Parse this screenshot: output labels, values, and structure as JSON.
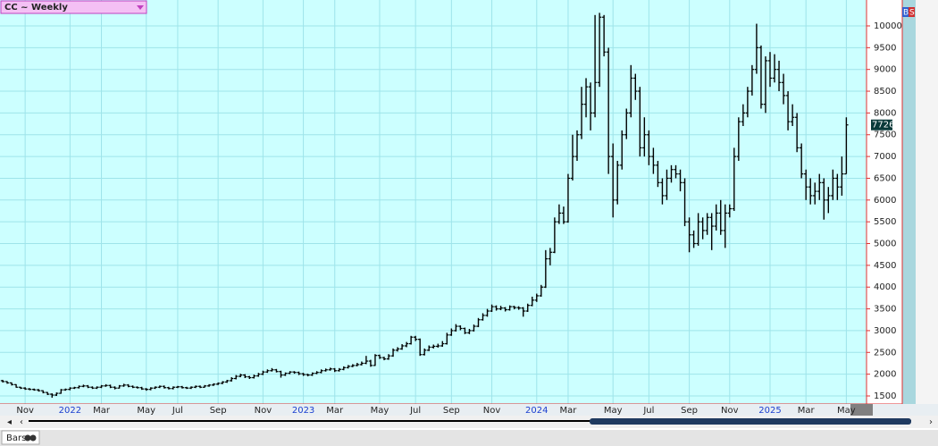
{
  "chart_data": {
    "type": "ohlc",
    "title": "CC ~ Weekly",
    "buttons": [
      "B",
      "S"
    ],
    "tab": "Bars",
    "color": "#000000",
    "background": "#ccffff",
    "grid": true,
    "ylim": [
      1315,
      10595
    ],
    "yticks": [
      1500,
      2000,
      2500,
      3000,
      3500,
      4000,
      4500,
      5000,
      5500,
      6000,
      6500,
      7000,
      7500,
      8000,
      8500,
      9000,
      9500,
      10000
    ],
    "xlim": [
      -0.6,
      192.5
    ],
    "xticks": [
      {
        "value": 5,
        "label": "Nov"
      },
      {
        "value": 15,
        "label": "2022"
      },
      {
        "value": 22,
        "label": "Mar"
      },
      {
        "value": 32,
        "label": "May"
      },
      {
        "value": 39,
        "label": "Jul"
      },
      {
        "value": 48,
        "label": "Sep"
      },
      {
        "value": 58,
        "label": "Nov"
      },
      {
        "value": 67,
        "label": "2023"
      },
      {
        "value": 74,
        "label": "Mar"
      },
      {
        "value": 84,
        "label": "May"
      },
      {
        "value": 92,
        "label": "Jul"
      },
      {
        "value": 100,
        "label": "Sep"
      },
      {
        "value": 109,
        "label": "Nov"
      },
      {
        "value": 119,
        "label": "2024"
      },
      {
        "value": 126,
        "label": "Mar"
      },
      {
        "value": 136,
        "label": "May"
      },
      {
        "value": 144,
        "label": "Jul"
      },
      {
        "value": 153,
        "label": "Sep"
      },
      {
        "value": 162,
        "label": "Nov"
      },
      {
        "value": 171,
        "label": "2025"
      },
      {
        "value": 179,
        "label": "Mar"
      },
      {
        "value": 188,
        "label": "May"
      }
    ],
    "ohlc": [
      [
        1850,
        1870,
        1810,
        1830
      ],
      [
        1830,
        1840,
        1780,
        1800
      ],
      [
        1800,
        1810,
        1740,
        1760
      ],
      [
        1760,
        1770,
        1690,
        1700
      ],
      [
        1700,
        1710,
        1660,
        1680
      ],
      [
        1680,
        1700,
        1640,
        1660
      ],
      [
        1660,
        1680,
        1630,
        1650
      ],
      [
        1650,
        1670,
        1620,
        1640
      ],
      [
        1640,
        1660,
        1600,
        1620
      ],
      [
        1620,
        1630,
        1560,
        1580
      ],
      [
        1580,
        1590,
        1520,
        1540
      ],
      [
        1540,
        1560,
        1460,
        1520
      ],
      [
        1520,
        1580,
        1500,
        1560
      ],
      [
        1560,
        1660,
        1550,
        1640
      ],
      [
        1640,
        1670,
        1620,
        1650
      ],
      [
        1650,
        1700,
        1630,
        1680
      ],
      [
        1680,
        1710,
        1660,
        1690
      ],
      [
        1690,
        1740,
        1670,
        1720
      ],
      [
        1720,
        1760,
        1700,
        1730
      ],
      [
        1730,
        1750,
        1680,
        1700
      ],
      [
        1700,
        1720,
        1660,
        1680
      ],
      [
        1680,
        1720,
        1660,
        1700
      ],
      [
        1700,
        1750,
        1680,
        1730
      ],
      [
        1730,
        1770,
        1710,
        1740
      ],
      [
        1740,
        1760,
        1680,
        1700
      ],
      [
        1700,
        1720,
        1650,
        1680
      ],
      [
        1680,
        1750,
        1670,
        1730
      ],
      [
        1730,
        1780,
        1710,
        1750
      ],
      [
        1750,
        1770,
        1700,
        1720
      ],
      [
        1720,
        1740,
        1680,
        1700
      ],
      [
        1700,
        1720,
        1670,
        1690
      ],
      [
        1690,
        1710,
        1640,
        1660
      ],
      [
        1660,
        1680,
        1620,
        1650
      ],
      [
        1650,
        1700,
        1630,
        1680
      ],
      [
        1680,
        1720,
        1660,
        1700
      ],
      [
        1700,
        1740,
        1680,
        1720
      ],
      [
        1720,
        1740,
        1670,
        1690
      ],
      [
        1690,
        1710,
        1650,
        1670
      ],
      [
        1670,
        1720,
        1650,
        1700
      ],
      [
        1700,
        1730,
        1680,
        1710
      ],
      [
        1710,
        1730,
        1670,
        1690
      ],
      [
        1690,
        1710,
        1660,
        1680
      ],
      [
        1680,
        1720,
        1660,
        1700
      ],
      [
        1700,
        1740,
        1680,
        1720
      ],
      [
        1720,
        1740,
        1680,
        1700
      ],
      [
        1700,
        1750,
        1690,
        1730
      ],
      [
        1730,
        1770,
        1710,
        1750
      ],
      [
        1750,
        1790,
        1730,
        1770
      ],
      [
        1770,
        1810,
        1750,
        1790
      ],
      [
        1790,
        1840,
        1770,
        1820
      ],
      [
        1820,
        1870,
        1800,
        1850
      ],
      [
        1850,
        1930,
        1830,
        1900
      ],
      [
        1900,
        1980,
        1880,
        1950
      ],
      [
        1950,
        2010,
        1930,
        1980
      ],
      [
        1980,
        2000,
        1910,
        1940
      ],
      [
        1940,
        1960,
        1890,
        1920
      ],
      [
        1920,
        1990,
        1900,
        1960
      ],
      [
        1960,
        2030,
        1940,
        2000
      ],
      [
        2000,
        2080,
        1980,
        2050
      ],
      [
        2050,
        2110,
        2030,
        2080
      ],
      [
        2080,
        2140,
        2060,
        2100
      ],
      [
        2100,
        2120,
        2040,
        2060
      ],
      [
        2060,
        2080,
        1920,
        1980
      ],
      [
        1980,
        2040,
        1960,
        2020
      ],
      [
        2020,
        2070,
        2000,
        2050
      ],
      [
        2050,
        2070,
        2010,
        2040
      ],
      [
        2040,
        2060,
        1980,
        2010
      ],
      [
        2010,
        2030,
        1960,
        1990
      ],
      [
        1990,
        2010,
        1950,
        1980
      ],
      [
        1980,
        2040,
        1960,
        2020
      ],
      [
        2020,
        2070,
        2000,
        2040
      ],
      [
        2040,
        2110,
        2020,
        2080
      ],
      [
        2080,
        2130,
        2060,
        2100
      ],
      [
        2100,
        2150,
        2080,
        2120
      ],
      [
        2120,
        2140,
        2050,
        2080
      ],
      [
        2080,
        2140,
        2060,
        2110
      ],
      [
        2110,
        2180,
        2090,
        2150
      ],
      [
        2150,
        2210,
        2130,
        2180
      ],
      [
        2180,
        2230,
        2160,
        2200
      ],
      [
        2200,
        2260,
        2180,
        2220
      ],
      [
        2220,
        2290,
        2200,
        2250
      ],
      [
        2250,
        2420,
        2230,
        2300
      ],
      [
        2300,
        2330,
        2170,
        2200
      ],
      [
        2200,
        2460,
        2190,
        2430
      ],
      [
        2430,
        2450,
        2350,
        2380
      ],
      [
        2380,
        2400,
        2320,
        2350
      ],
      [
        2350,
        2460,
        2330,
        2420
      ],
      [
        2420,
        2590,
        2400,
        2550
      ],
      [
        2550,
        2620,
        2520,
        2580
      ],
      [
        2580,
        2690,
        2560,
        2650
      ],
      [
        2650,
        2740,
        2620,
        2700
      ],
      [
        2700,
        2880,
        2680,
        2850
      ],
      [
        2850,
        2880,
        2760,
        2800
      ],
      [
        2800,
        2820,
        2420,
        2450
      ],
      [
        2450,
        2590,
        2430,
        2550
      ],
      [
        2550,
        2660,
        2530,
        2620
      ],
      [
        2620,
        2680,
        2590,
        2640
      ],
      [
        2640,
        2700,
        2610,
        2650
      ],
      [
        2650,
        2760,
        2630,
        2700
      ],
      [
        2700,
        2950,
        2680,
        2900
      ],
      [
        2900,
        3050,
        2880,
        3000
      ],
      [
        3000,
        3150,
        2980,
        3100
      ],
      [
        3100,
        3120,
        3010,
        3050
      ],
      [
        3050,
        3070,
        2920,
        2950
      ],
      [
        2950,
        3040,
        2920,
        3000
      ],
      [
        3000,
        3140,
        2980,
        3100
      ],
      [
        3100,
        3290,
        3080,
        3250
      ],
      [
        3250,
        3400,
        3230,
        3350
      ],
      [
        3350,
        3500,
        3320,
        3450
      ],
      [
        3450,
        3600,
        3430,
        3550
      ],
      [
        3550,
        3580,
        3460,
        3500
      ],
      [
        3500,
        3570,
        3470,
        3520
      ],
      [
        3520,
        3540,
        3440,
        3480
      ],
      [
        3480,
        3580,
        3460,
        3550
      ],
      [
        3550,
        3570,
        3490,
        3530
      ],
      [
        3530,
        3560,
        3480,
        3520
      ],
      [
        3520,
        3540,
        3320,
        3450
      ],
      [
        3450,
        3620,
        3430,
        3580
      ],
      [
        3580,
        3780,
        3560,
        3700
      ],
      [
        3700,
        3850,
        3660,
        3800
      ],
      [
        3800,
        4050,
        3780,
        4000
      ],
      [
        4000,
        4850,
        3980,
        4650
      ],
      [
        4650,
        4900,
        4500,
        4800
      ],
      [
        4800,
        5600,
        4780,
        5500
      ],
      [
        5500,
        5900,
        5450,
        5700
      ],
      [
        5700,
        5850,
        5450,
        5500
      ],
      [
        5500,
        6600,
        5480,
        6500
      ],
      [
        6500,
        7500,
        6450,
        7000
      ],
      [
        7000,
        7600,
        6900,
        7500
      ],
      [
        7500,
        8600,
        7400,
        8200
      ],
      [
        8200,
        8800,
        7900,
        8600
      ],
      [
        8600,
        8700,
        7600,
        8000
      ],
      [
        8000,
        10250,
        7900,
        8700
      ],
      [
        8700,
        10300,
        8600,
        10200
      ],
      [
        10200,
        10250,
        9300,
        9400
      ],
      [
        9400,
        9500,
        6600,
        7000
      ],
      [
        7000,
        7300,
        5600,
        6000
      ],
      [
        6000,
        6900,
        5900,
        6800
      ],
      [
        6800,
        7600,
        6700,
        7500
      ],
      [
        7500,
        8100,
        7400,
        8000
      ],
      [
        8000,
        9100,
        7900,
        8800
      ],
      [
        8800,
        8900,
        8300,
        8500
      ],
      [
        8500,
        8600,
        7000,
        7200
      ],
      [
        7200,
        7900,
        7000,
        7500
      ],
      [
        7500,
        7600,
        6800,
        7000
      ],
      [
        7000,
        7200,
        6600,
        6800
      ],
      [
        6800,
        6900,
        6300,
        6400
      ],
      [
        6400,
        6500,
        5900,
        6100
      ],
      [
        6100,
        6700,
        6000,
        6500
      ],
      [
        6500,
        6800,
        6400,
        6700
      ],
      [
        6700,
        6800,
        6500,
        6600
      ],
      [
        6600,
        6700,
        6200,
        6400
      ],
      [
        6400,
        6500,
        5400,
        5500
      ],
      [
        5500,
        5600,
        4800,
        5200
      ],
      [
        5200,
        5300,
        4900,
        5000
      ],
      [
        5000,
        5700,
        4950,
        5500
      ],
      [
        5500,
        5600,
        5100,
        5300
      ],
      [
        5300,
        5700,
        5200,
        5600
      ],
      [
        5600,
        5700,
        4850,
        5400
      ],
      [
        5400,
        5900,
        5300,
        5700
      ],
      [
        5700,
        6000,
        5200,
        5300
      ],
      [
        5300,
        5900,
        4900,
        5700
      ],
      [
        5700,
        5900,
        5600,
        5800
      ],
      [
        5800,
        7200,
        5750,
        7000
      ],
      [
        7000,
        7900,
        6900,
        7800
      ],
      [
        7800,
        8200,
        7700,
        8000
      ],
      [
        8000,
        8600,
        7900,
        8500
      ],
      [
        8500,
        9100,
        8400,
        9000
      ],
      [
        9000,
        10050,
        8900,
        9500
      ],
      [
        9500,
        9550,
        8100,
        8200
      ],
      [
        8200,
        9300,
        8000,
        9200
      ],
      [
        9200,
        9400,
        8600,
        8800
      ],
      [
        8800,
        9350,
        8700,
        9000
      ],
      [
        9000,
        9200,
        8500,
        8700
      ],
      [
        8700,
        8900,
        8200,
        8400
      ],
      [
        8400,
        8500,
        7600,
        7800
      ],
      [
        7800,
        8200,
        7700,
        7900
      ],
      [
        7900,
        8000,
        7100,
        7200
      ],
      [
        7200,
        7300,
        6500,
        6600
      ],
      [
        6600,
        6700,
        6000,
        6300
      ],
      [
        6300,
        6500,
        5900,
        6100
      ],
      [
        6100,
        6400,
        5900,
        6200
      ],
      [
        6200,
        6600,
        6000,
        6400
      ],
      [
        6400,
        6500,
        5550,
        6000
      ],
      [
        6000,
        6300,
        5700,
        6100
      ],
      [
        6100,
        6700,
        6000,
        6500
      ],
      [
        6500,
        6600,
        6000,
        6300
      ],
      [
        6300,
        7000,
        6100,
        6600
      ],
      [
        6600,
        7900,
        6600,
        7726
      ]
    ]
  }
}
